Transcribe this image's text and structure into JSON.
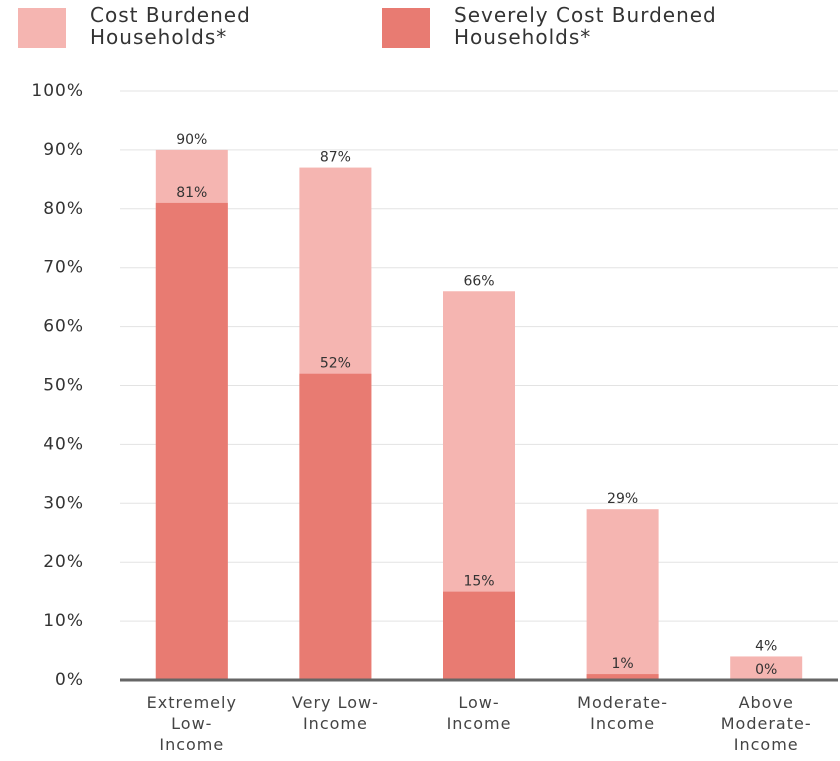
{
  "chart_data": {
    "type": "overlapping-bar",
    "categories": [
      "Extremely\nLow-\nIncome",
      "Very Low-\nIncome",
      "Low-\nIncome",
      "Moderate-\nIncome",
      "Above\nModerate-\nIncome"
    ],
    "series": [
      {
        "name": "Cost Burdened Households*",
        "color": "#f5b5b1",
        "values": [
          90,
          87,
          66,
          29,
          4
        ],
        "value_labels": [
          "90%",
          "87%",
          "66%",
          "29%",
          "4%"
        ]
      },
      {
        "name": "Severely Cost Burdened Households*",
        "color": "#e87b72",
        "values": [
          81,
          52,
          15,
          1,
          0
        ],
        "value_labels": [
          "81%",
          "52%",
          "15%",
          "1%",
          "0%"
        ]
      }
    ],
    "ylim": [
      0,
      100
    ],
    "yticks": [
      {
        "value": 0,
        "label": "0%"
      },
      {
        "value": 10,
        "label": "10%"
      },
      {
        "value": 20,
        "label": "20%"
      },
      {
        "value": 30,
        "label": "30%"
      },
      {
        "value": 40,
        "label": "40%"
      },
      {
        "value": 50,
        "label": "50%"
      },
      {
        "value": 60,
        "label": "60%"
      },
      {
        "value": 70,
        "label": "70%"
      },
      {
        "value": 80,
        "label": "80%"
      },
      {
        "value": 90,
        "label": "90%"
      },
      {
        "value": 100,
        "label": "100%"
      }
    ],
    "grid": true
  }
}
